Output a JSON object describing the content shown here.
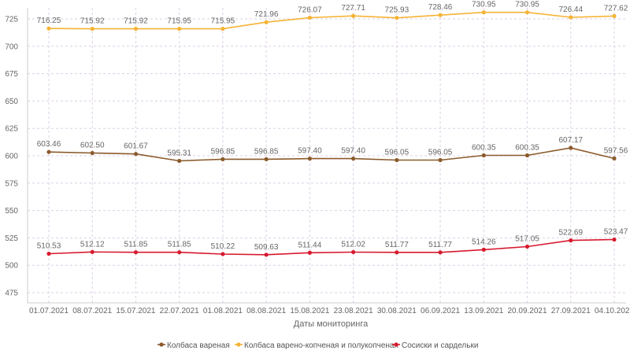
{
  "chart_data": {
    "type": "line",
    "xlabel": "Даты мониторинга",
    "ylabel": "",
    "ylim": [
      475,
      735
    ],
    "yticks": [
      475,
      500,
      525,
      550,
      575,
      600,
      625,
      650,
      675,
      700,
      725
    ],
    "grid": true,
    "legend_position": "bottom",
    "categories": [
      "01.07.2021",
      "08.07.2021",
      "15.07.2021",
      "22.07.2021",
      "01.08.2021",
      "08.08.2021",
      "15.08.2021",
      "23.08.2021",
      "30.08.2021",
      "06.09.2021",
      "13.09.2021",
      "20.09.2021",
      "27.09.2021",
      "04.10.2021"
    ],
    "series": [
      {
        "name": "Колбаса вареная",
        "color": "#8b5a2b",
        "values": [
          603.46,
          602.5,
          601.67,
          595.31,
          596.85,
          596.85,
          597.4,
          597.4,
          596.05,
          596.05,
          600.35,
          600.35,
          607.17,
          597.56
        ],
        "labels": [
          "603.46",
          "602.50",
          "601.67",
          "595.31",
          "596.85",
          "596.85",
          "597.40",
          "597.40",
          "596.05",
          "596.05",
          "600.35",
          "600.35",
          "607.17",
          "597.56"
        ]
      },
      {
        "name": "Колбаса варено-копченая и полукопченая",
        "color": "#f5b335",
        "values": [
          716.25,
          715.92,
          715.92,
          715.95,
          715.95,
          721.96,
          726.07,
          727.71,
          725.93,
          728.46,
          730.95,
          730.95,
          726.44,
          727.62
        ],
        "labels": [
          "716.25",
          "715.92",
          "715.92",
          "715.95",
          "715.95",
          "721.96",
          "726.07",
          "727.71",
          "725.93",
          "728.46",
          "730.95",
          "730.95",
          "726.44",
          "727.62"
        ]
      },
      {
        "name": "Сосиски и сардельки",
        "color": "#d7192e",
        "values": [
          510.53,
          512.12,
          511.85,
          511.85,
          510.22,
          509.63,
          511.44,
          512.02,
          511.77,
          511.77,
          514.26,
          517.05,
          522.69,
          523.47
        ],
        "labels": [
          "510.53",
          "512.12",
          "511.85",
          "511.85",
          "510.22",
          "509.63",
          "511.44",
          "512.02",
          "511.77",
          "511.77",
          "514.26",
          "517.05",
          "522.69",
          "523.47"
        ]
      }
    ]
  }
}
